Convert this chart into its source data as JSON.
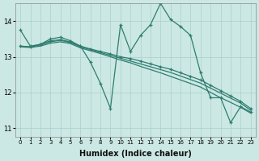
{
  "xlabel": "Humidex (Indice chaleur)",
  "ylabel": "",
  "bg_color": "#cce8e4",
  "grid_color": "#aacfcb",
  "line_color": "#2e7d6e",
  "xlim": [
    -0.5,
    23.5
  ],
  "ylim": [
    10.75,
    14.5
  ],
  "yticks": [
    11,
    12,
    13,
    14
  ],
  "xticks": [
    0,
    1,
    2,
    3,
    4,
    5,
    6,
    7,
    8,
    9,
    10,
    11,
    12,
    13,
    14,
    15,
    16,
    17,
    18,
    19,
    20,
    21,
    22,
    23
  ],
  "series1_x": [
    0,
    1,
    2,
    3,
    4,
    5,
    6,
    7,
    8,
    9,
    10,
    11,
    12,
    13,
    14,
    15,
    16,
    17,
    18,
    19,
    20,
    21,
    22,
    23
  ],
  "series1_y": [
    13.75,
    13.3,
    13.35,
    13.5,
    13.55,
    13.45,
    13.3,
    12.85,
    12.25,
    11.55,
    13.9,
    13.15,
    13.6,
    13.9,
    14.5,
    14.05,
    13.85,
    13.6,
    12.55,
    11.85,
    11.85,
    11.15,
    11.6,
    11.45
  ],
  "series2_x": [
    0,
    1,
    2,
    3,
    4,
    5,
    6,
    7,
    8,
    9,
    10,
    11,
    12,
    13,
    14,
    15,
    16,
    17,
    18,
    19,
    20,
    21,
    22,
    23
  ],
  "series2_y": [
    13.3,
    13.28,
    13.35,
    13.45,
    13.48,
    13.42,
    13.3,
    13.22,
    13.15,
    13.08,
    13.0,
    12.95,
    12.88,
    12.8,
    12.72,
    12.65,
    12.55,
    12.45,
    12.35,
    12.2,
    12.05,
    11.9,
    11.75,
    11.55
  ],
  "series3_x": [
    0,
    1,
    2,
    3,
    4,
    5,
    6,
    7,
    8,
    9,
    10,
    11,
    12,
    13,
    14,
    15,
    16,
    17,
    18,
    19,
    20,
    21,
    22,
    23
  ],
  "series3_y": [
    13.3,
    13.28,
    13.33,
    13.42,
    13.46,
    13.4,
    13.28,
    13.2,
    13.12,
    13.04,
    12.96,
    12.88,
    12.8,
    12.72,
    12.64,
    12.56,
    12.46,
    12.36,
    12.26,
    12.12,
    11.98,
    11.84,
    11.7,
    11.5
  ],
  "series4_x": [
    0,
    1,
    2,
    3,
    4,
    5,
    6,
    7,
    8,
    9,
    10,
    11,
    12,
    13,
    14,
    15,
    16,
    17,
    18,
    19,
    20,
    21,
    22,
    23
  ],
  "series4_y": [
    13.28,
    13.26,
    13.3,
    13.38,
    13.42,
    13.37,
    13.25,
    13.17,
    13.09,
    13.0,
    12.91,
    12.83,
    12.73,
    12.64,
    12.55,
    12.45,
    12.35,
    12.25,
    12.15,
    12.0,
    11.85,
    11.72,
    11.58,
    11.42
  ]
}
